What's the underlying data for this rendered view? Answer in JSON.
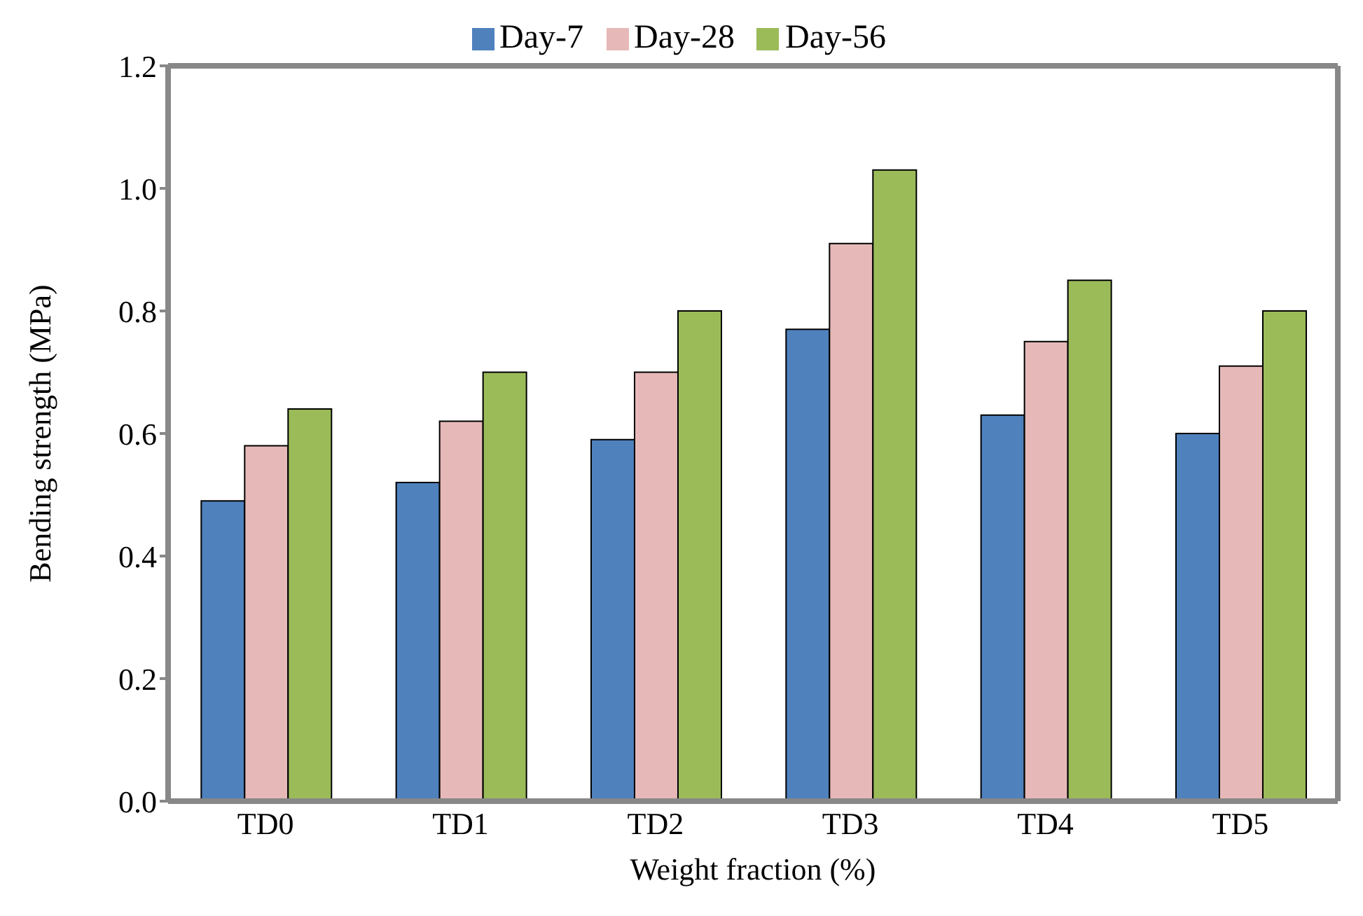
{
  "chart_data": {
    "type": "bar",
    "xlabel": "Weight fraction (%)",
    "ylabel": "Bending strength (MPa)",
    "categories": [
      "TD0",
      "TD1",
      "TD2",
      "TD3",
      "TD4",
      "TD5"
    ],
    "series": [
      {
        "name": "Day-7",
        "color": "#4f81bd",
        "values": [
          0.49,
          0.52,
          0.59,
          0.77,
          0.63,
          0.6
        ]
      },
      {
        "name": "Day-28",
        "color": "#e6b9b8",
        "values": [
          0.58,
          0.62,
          0.7,
          0.91,
          0.75,
          0.71
        ]
      },
      {
        "name": "Day-56",
        "color": "#9bbb59",
        "values": [
          0.64,
          0.7,
          0.8,
          1.03,
          0.85,
          0.8
        ]
      }
    ],
    "ylim": [
      0,
      1.2
    ],
    "yticks": [
      {
        "value": 0,
        "label": "0.0"
      },
      0.2,
      0.4,
      0.6,
      0.8,
      {
        "value": 1,
        "label": "1.0"
      },
      1.2
    ],
    "grid": false,
    "legend": "top"
  }
}
